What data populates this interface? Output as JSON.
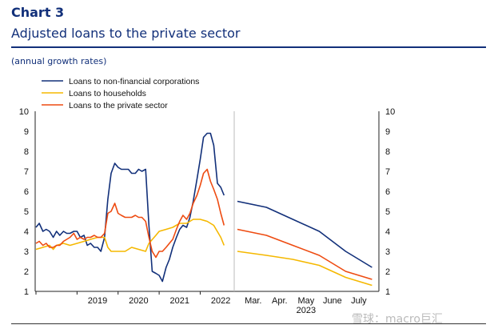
{
  "header": {
    "chart_number": "Chart 3",
    "title": "Adjusted loans to the private sector",
    "subtitle": "(annual growth rates)"
  },
  "watermark": "雪球：macro巨汇",
  "colors": {
    "nfc": "#12307a",
    "households": "#f5b800",
    "private": "#ee4b11",
    "axis": "#222222",
    "divider": "#bbbbbb"
  },
  "chart_data": {
    "type": "line",
    "ylim": [
      1,
      10
    ],
    "y_ticks": [
      "1",
      "2",
      "3",
      "4",
      "5",
      "6",
      "7",
      "8",
      "9",
      "10"
    ],
    "legend": [
      {
        "key": "nfc",
        "label": "Loans to non-financial corporations"
      },
      {
        "key": "households",
        "label": "Loans to households"
      },
      {
        "key": "private",
        "label": "Loans to the private sector"
      }
    ],
    "historical": {
      "x_range": [
        2018.0,
        2022.75
      ],
      "x_tick_labels": [
        {
          "label": "2019",
          "x": 2019.0
        },
        {
          "label": "2020",
          "x": 2020.0
        },
        {
          "label": "2021",
          "x": 2021.0
        },
        {
          "label": "2022",
          "x": 2022.0
        }
      ],
      "series": [
        {
          "key": "nfc",
          "name": "Loans to non-financial corporations",
          "points": [
            [
              2018.0,
              4.2
            ],
            [
              2018.08,
              4.4
            ],
            [
              2018.17,
              4.0
            ],
            [
              2018.25,
              4.1
            ],
            [
              2018.33,
              4.0
            ],
            [
              2018.42,
              3.7
            ],
            [
              2018.5,
              4.0
            ],
            [
              2018.58,
              3.8
            ],
            [
              2018.67,
              4.0
            ],
            [
              2018.75,
              3.9
            ],
            [
              2018.83,
              3.9
            ],
            [
              2018.92,
              4.0
            ],
            [
              2019.0,
              4.0
            ],
            [
              2019.08,
              3.7
            ],
            [
              2019.17,
              3.8
            ],
            [
              2019.25,
              3.3
            ],
            [
              2019.33,
              3.4
            ],
            [
              2019.42,
              3.2
            ],
            [
              2019.5,
              3.2
            ],
            [
              2019.58,
              3.0
            ],
            [
              2019.67,
              3.7
            ],
            [
              2019.75,
              5.6
            ],
            [
              2019.83,
              6.9
            ],
            [
              2019.92,
              7.4
            ],
            [
              2020.0,
              7.2
            ],
            [
              2020.08,
              7.1
            ],
            [
              2020.17,
              7.1
            ],
            [
              2020.25,
              7.1
            ],
            [
              2020.33,
              6.9
            ],
            [
              2020.42,
              6.9
            ],
            [
              2020.5,
              7.1
            ],
            [
              2020.58,
              7.0
            ],
            [
              2020.67,
              7.1
            ],
            [
              2020.75,
              4.3
            ],
            [
              2020.83,
              2.0
            ],
            [
              2020.92,
              1.9
            ],
            [
              2021.0,
              1.8
            ],
            [
              2021.08,
              1.5
            ],
            [
              2021.17,
              2.2
            ],
            [
              2021.25,
              2.6
            ],
            [
              2021.33,
              3.2
            ],
            [
              2021.42,
              3.7
            ],
            [
              2021.5,
              4.1
            ],
            [
              2021.58,
              4.3
            ],
            [
              2021.67,
              4.2
            ],
            [
              2021.75,
              4.7
            ],
            [
              2021.83,
              5.5
            ],
            [
              2021.92,
              6.6
            ],
            [
              2022.0,
              7.6
            ],
            [
              2022.08,
              8.7
            ],
            [
              2022.17,
              8.9
            ],
            [
              2022.25,
              8.9
            ],
            [
              2022.33,
              8.3
            ],
            [
              2022.42,
              6.4
            ],
            [
              2022.5,
              6.2
            ],
            [
              2022.58,
              5.8
            ]
          ]
        },
        {
          "key": "households",
          "name": "Loans to households",
          "points": [
            [
              2018.0,
              3.1
            ],
            [
              2018.17,
              3.2
            ],
            [
              2018.33,
              3.3
            ],
            [
              2018.42,
              3.1
            ],
            [
              2018.5,
              3.3
            ],
            [
              2018.67,
              3.4
            ],
            [
              2018.83,
              3.3
            ],
            [
              2019.0,
              3.4
            ],
            [
              2019.17,
              3.5
            ],
            [
              2019.33,
              3.6
            ],
            [
              2019.5,
              3.7
            ],
            [
              2019.67,
              3.7
            ],
            [
              2019.75,
              3.2
            ],
            [
              2019.83,
              3.0
            ],
            [
              2020.0,
              3.0
            ],
            [
              2020.17,
              3.0
            ],
            [
              2020.33,
              3.2
            ],
            [
              2020.5,
              3.1
            ],
            [
              2020.67,
              3.0
            ],
            [
              2020.75,
              3.4
            ],
            [
              2020.92,
              3.8
            ],
            [
              2021.0,
              4.0
            ],
            [
              2021.17,
              4.1
            ],
            [
              2021.33,
              4.2
            ],
            [
              2021.5,
              4.4
            ],
            [
              2021.67,
              4.4
            ],
            [
              2021.83,
              4.6
            ],
            [
              2022.0,
              4.6
            ],
            [
              2022.17,
              4.5
            ],
            [
              2022.33,
              4.3
            ],
            [
              2022.5,
              3.7
            ],
            [
              2022.58,
              3.3
            ]
          ]
        },
        {
          "key": "private",
          "name": "Loans to the private sector",
          "points": [
            [
              2018.0,
              3.4
            ],
            [
              2018.08,
              3.5
            ],
            [
              2018.17,
              3.3
            ],
            [
              2018.25,
              3.4
            ],
            [
              2018.33,
              3.2
            ],
            [
              2018.42,
              3.2
            ],
            [
              2018.5,
              3.3
            ],
            [
              2018.58,
              3.3
            ],
            [
              2018.67,
              3.5
            ],
            [
              2018.75,
              3.6
            ],
            [
              2018.83,
              3.7
            ],
            [
              2018.92,
              3.9
            ],
            [
              2019.0,
              3.6
            ],
            [
              2019.08,
              3.7
            ],
            [
              2019.17,
              3.6
            ],
            [
              2019.25,
              3.7
            ],
            [
              2019.33,
              3.7
            ],
            [
              2019.42,
              3.8
            ],
            [
              2019.5,
              3.7
            ],
            [
              2019.58,
              3.7
            ],
            [
              2019.67,
              3.9
            ],
            [
              2019.75,
              4.9
            ],
            [
              2019.83,
              5.0
            ],
            [
              2019.92,
              5.4
            ],
            [
              2020.0,
              4.9
            ],
            [
              2020.08,
              4.8
            ],
            [
              2020.17,
              4.7
            ],
            [
              2020.25,
              4.7
            ],
            [
              2020.33,
              4.7
            ],
            [
              2020.42,
              4.8
            ],
            [
              2020.5,
              4.7
            ],
            [
              2020.58,
              4.7
            ],
            [
              2020.67,
              4.5
            ],
            [
              2020.75,
              3.7
            ],
            [
              2020.83,
              3.0
            ],
            [
              2020.92,
              2.7
            ],
            [
              2021.0,
              3.0
            ],
            [
              2021.08,
              3.0
            ],
            [
              2021.17,
              3.2
            ],
            [
              2021.25,
              3.4
            ],
            [
              2021.33,
              3.6
            ],
            [
              2021.42,
              4.1
            ],
            [
              2021.5,
              4.5
            ],
            [
              2021.58,
              4.8
            ],
            [
              2021.67,
              4.6
            ],
            [
              2021.75,
              4.9
            ],
            [
              2021.83,
              5.4
            ],
            [
              2021.92,
              5.8
            ],
            [
              2022.0,
              6.3
            ],
            [
              2022.08,
              6.9
            ],
            [
              2022.17,
              7.1
            ],
            [
              2022.25,
              6.5
            ],
            [
              2022.33,
              6.1
            ],
            [
              2022.42,
              5.6
            ],
            [
              2022.5,
              4.9
            ],
            [
              2022.58,
              4.3
            ]
          ]
        }
      ]
    },
    "recent": {
      "x_range": [
        2.4,
        7.7
      ],
      "x_tick_labels": [
        {
          "label": "Mar.",
          "x": 3
        },
        {
          "label": "Apr.",
          "x": 4
        },
        {
          "label": "May",
          "x": 5
        },
        {
          "label": "June",
          "x": 6
        },
        {
          "label": "July",
          "x": 7
        }
      ],
      "year_label": "2023",
      "series": [
        {
          "key": "nfc",
          "name": "Loans to non-financial corporations",
          "points": [
            [
              2.4,
              5.5
            ],
            [
              3.5,
              5.2
            ],
            [
              4.5,
              4.6
            ],
            [
              5.5,
              4.0
            ],
            [
              6.5,
              3.0
            ],
            [
              7.5,
              2.2
            ]
          ]
        },
        {
          "key": "households",
          "name": "Loans to households",
          "points": [
            [
              2.4,
              3.0
            ],
            [
              3.5,
              2.8
            ],
            [
              4.5,
              2.6
            ],
            [
              5.5,
              2.3
            ],
            [
              6.5,
              1.7
            ],
            [
              7.5,
              1.3
            ]
          ]
        },
        {
          "key": "private",
          "name": "Loans to the private sector",
          "points": [
            [
              2.4,
              4.1
            ],
            [
              3.5,
              3.8
            ],
            [
              4.5,
              3.3
            ],
            [
              5.5,
              2.8
            ],
            [
              6.5,
              2.0
            ],
            [
              7.5,
              1.6
            ]
          ]
        }
      ]
    }
  }
}
